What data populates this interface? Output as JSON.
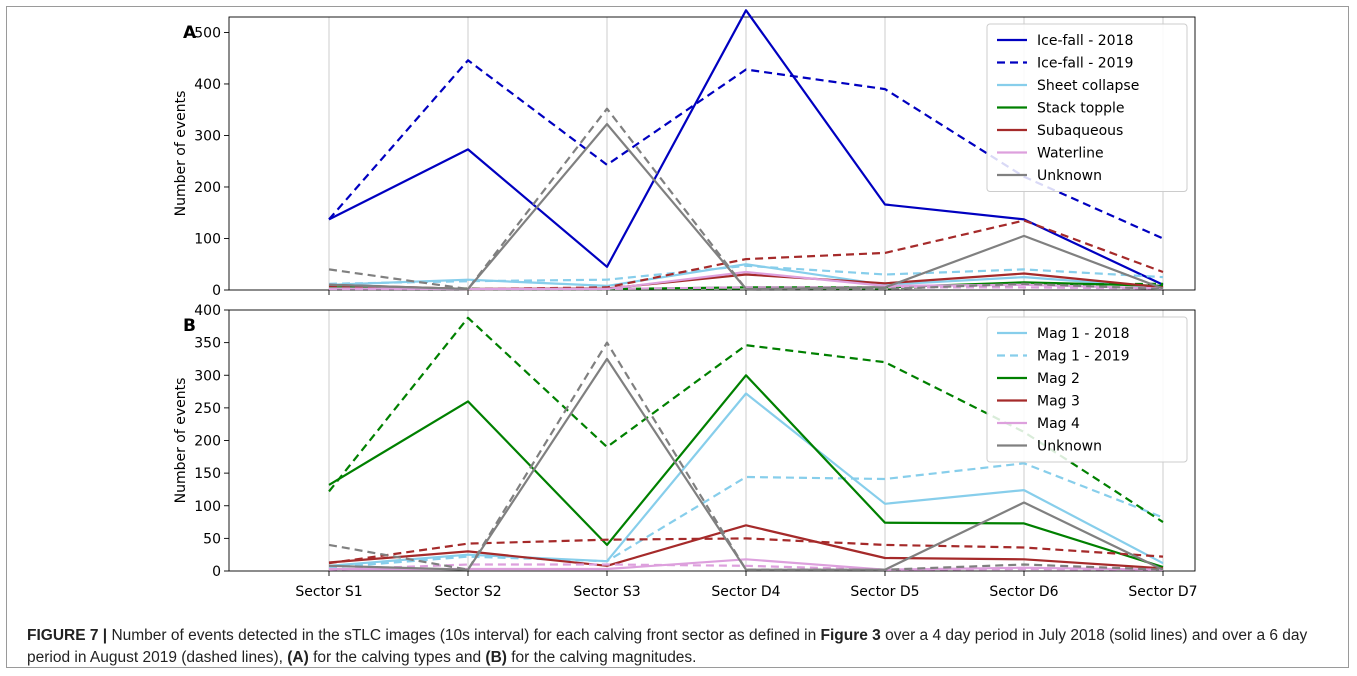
{
  "chart_data": [
    {
      "panel": "A",
      "type": "line",
      "categories": [
        "Sector S1",
        "Sector S2",
        "Sector S3",
        "Sector D4",
        "Sector D5",
        "Sector D6",
        "Sector D7"
      ],
      "ylabel": "Number of events",
      "ylim": [
        0,
        530
      ],
      "yticks": [
        0,
        100,
        200,
        300,
        400,
        500
      ],
      "grid": "vertical",
      "legend": "top-right",
      "series": [
        {
          "name": "Ice-fall - 2018",
          "color": "#0000c0",
          "dash": false,
          "values": [
            137,
            273,
            45,
            543,
            166,
            137,
            10
          ]
        },
        {
          "name": "Ice-fall - 2019",
          "color": "#0000c0",
          "dash": true,
          "values": [
            137,
            446,
            243,
            428,
            390,
            220,
            100
          ]
        },
        {
          "name": "Sheet collapse",
          "color": "#87ceeb",
          "dash": false,
          "values": [
            10,
            20,
            8,
            50,
            10,
            25,
            5
          ]
        },
        {
          "color": "#87ceeb",
          "dash": true,
          "values": [
            12,
            17,
            20,
            47,
            30,
            40,
            25
          ]
        },
        {
          "name": "Stack topple",
          "color": "#008000",
          "dash": false,
          "values": [
            5,
            2,
            2,
            5,
            5,
            15,
            8
          ]
        },
        {
          "color": "#008000",
          "dash": true,
          "values": [
            3,
            3,
            2,
            3,
            3,
            10,
            12
          ]
        },
        {
          "name": "Subaqueous",
          "color": "#a52a2a",
          "dash": false,
          "values": [
            10,
            2,
            3,
            30,
            13,
            32,
            5
          ]
        },
        {
          "color": "#a52a2a",
          "dash": true,
          "values": [
            8,
            2,
            5,
            60,
            72,
            135,
            35
          ]
        },
        {
          "name": "Waterline",
          "color": "#dda0dd",
          "dash": false,
          "values": [
            3,
            2,
            2,
            35,
            8,
            10,
            3
          ]
        },
        {
          "color": "#dda0dd",
          "dash": true,
          "values": [
            2,
            2,
            2,
            5,
            5,
            5,
            3
          ]
        },
        {
          "name": "Unknown",
          "color": "#808080",
          "dash": false,
          "values": [
            10,
            2,
            322,
            2,
            5,
            105,
            3
          ]
        },
        {
          "color": "#808080",
          "dash": true,
          "values": [
            40,
            2,
            352,
            2,
            2,
            12,
            2
          ]
        }
      ]
    },
    {
      "panel": "B",
      "type": "line",
      "categories": [
        "Sector S1",
        "Sector S2",
        "Sector S3",
        "Sector D4",
        "Sector D5",
        "Sector D6",
        "Sector D7"
      ],
      "ylabel": "Number of events",
      "ylim": [
        0,
        400
      ],
      "yticks": [
        0,
        50,
        100,
        150,
        200,
        250,
        300,
        350,
        400
      ],
      "grid": "vertical",
      "legend": "top-right",
      "series": [
        {
          "name": "Mag 1 - 2018",
          "color": "#87ceeb",
          "dash": false,
          "values": [
            8,
            25,
            15,
            272,
            103,
            124,
            12
          ]
        },
        {
          "name": "Mag 1 - 2019",
          "color": "#87ceeb",
          "dash": true,
          "values": [
            5,
            22,
            15,
            144,
            141,
            165,
            82
          ]
        },
        {
          "name": "Mag 2",
          "color": "#008000",
          "dash": false,
          "values": [
            132,
            260,
            40,
            300,
            74,
            73,
            6
          ]
        },
        {
          "color": "#008000",
          "dash": true,
          "values": [
            122,
            388,
            190,
            346,
            320,
            213,
            75
          ]
        },
        {
          "name": "Mag 3",
          "color": "#a52a2a",
          "dash": false,
          "values": [
            13,
            30,
            8,
            70,
            20,
            18,
            4
          ]
        },
        {
          "color": "#a52a2a",
          "dash": true,
          "values": [
            12,
            42,
            48,
            50,
            40,
            36,
            22
          ]
        },
        {
          "name": "Mag 4",
          "color": "#dda0dd",
          "dash": false,
          "values": [
            3,
            3,
            3,
            18,
            2,
            5,
            2
          ]
        },
        {
          "color": "#dda0dd",
          "dash": true,
          "values": [
            2,
            10,
            10,
            8,
            2,
            3,
            2
          ]
        },
        {
          "name": "Unknown",
          "color": "#808080",
          "dash": false,
          "values": [
            8,
            2,
            325,
            2,
            2,
            105,
            2
          ]
        },
        {
          "color": "#808080",
          "dash": true,
          "values": [
            40,
            2,
            350,
            2,
            2,
            10,
            2
          ]
        }
      ]
    }
  ],
  "caption": {
    "label": "FIGURE 7 |",
    "part1": " Number of events detected in the sTLC images (10s interval) for each calving front sector as defined in ",
    "ref": "Figure 3",
    "part2": " over a 4 day period in July 2018 (solid lines) and over a 6 day period in August 2019 (dashed lines), ",
    "a": "(A)",
    "part3": " for the calving types and ",
    "b": "(B)",
    "part4": " for the calving magnitudes."
  }
}
